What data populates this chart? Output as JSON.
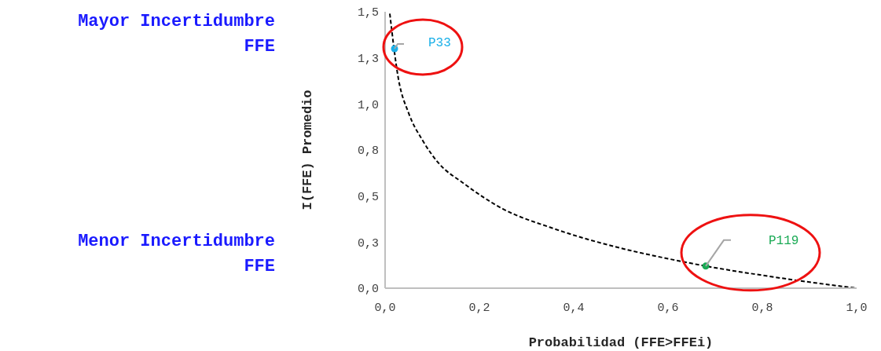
{
  "chart_data": {
    "type": "line",
    "xlabel": "Probabilidad (FFE>FFEi)",
    "ylabel": "I(FFE) Promedio",
    "annotations": [
      "Mayor Incertidumbre FFE",
      "Menor Incertidumbre FFE"
    ],
    "xlim": [
      0,
      1
    ],
    "xticks": [
      {
        "value": 0,
        "label": "0,0"
      },
      {
        "value": 0.2,
        "label": "0,2"
      },
      {
        "value": 0.4,
        "label": "0,4"
      },
      {
        "value": 0.6,
        "label": "0,6"
      },
      {
        "value": 0.8,
        "label": "0,8"
      },
      {
        "value": 1,
        "label": "1,0"
      }
    ],
    "ylim": [
      0,
      1.5
    ],
    "yticks": [
      {
        "value": 0,
        "label": "0,0"
      },
      {
        "value": 0.25,
        "label": "0,3"
      },
      {
        "value": 0.5,
        "label": "0,5"
      },
      {
        "value": 0.75,
        "label": "0,8"
      },
      {
        "value": 1,
        "label": "1,0"
      },
      {
        "value": 1.25,
        "label": "1,3"
      },
      {
        "value": 1.5,
        "label": "1,5"
      }
    ],
    "grid": false,
    "series": [
      {
        "color": "#000000",
        "line_style": "dashed",
        "marker": "none",
        "x": [
          0.01,
          0.028,
          0.05,
          0.08,
          0.113,
          0.166,
          0.25,
          0.35,
          0.48,
          0.6,
          0.68,
          0.8,
          0.88,
          1.0
        ],
        "values": [
          1.49,
          1.14,
          0.95,
          0.8,
          0.68,
          0.57,
          0.43,
          0.33,
          0.23,
          0.16,
          0.12,
          0.07,
          0.04,
          0.0
        ]
      },
      {
        "type": "scatter",
        "name": "P33",
        "color": "#1ab0e8",
        "marker": "circle",
        "x": [
          0.02
        ],
        "values": [
          1.3
        ]
      },
      {
        "type": "scatter",
        "name": "P119",
        "color": "#1aaa55",
        "marker": "circle",
        "x": [
          0.68
        ],
        "values": [
          0.12
        ]
      }
    ]
  }
}
